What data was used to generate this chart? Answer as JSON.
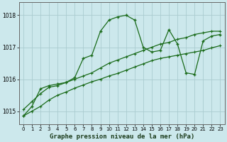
{
  "title": "Graphe pression niveau de la mer (hPa)",
  "background_color": "#cce8ec",
  "grid_color": "#aaccd0",
  "line_color": "#1a6b1a",
  "x_ticks": [
    0,
    1,
    2,
    3,
    4,
    5,
    6,
    7,
    8,
    9,
    10,
    11,
    12,
    13,
    14,
    15,
    16,
    17,
    18,
    19,
    20,
    21,
    22,
    23
  ],
  "y_ticks": [
    1015,
    1016,
    1017,
    1018
  ],
  "ylim": [
    1014.6,
    1018.4
  ],
  "xlim": [
    -0.5,
    23.5
  ],
  "series1": [
    1014.85,
    1015.15,
    1015.7,
    1015.8,
    1015.85,
    1015.9,
    1016.05,
    1016.65,
    1016.75,
    1017.5,
    1017.85,
    1017.95,
    1018.0,
    1017.85,
    1017.0,
    1016.85,
    1016.9,
    1017.55,
    1017.1,
    1016.2,
    1016.15,
    1017.2,
    1017.35,
    1017.4
  ],
  "series2": [
    1015.05,
    1015.3,
    1015.55,
    1015.75,
    1015.8,
    1015.9,
    1016.0,
    1016.1,
    1016.2,
    1016.35,
    1016.5,
    1016.6,
    1016.7,
    1016.8,
    1016.9,
    1017.0,
    1017.1,
    1017.15,
    1017.25,
    1017.3,
    1017.4,
    1017.45,
    1017.5,
    1017.5
  ],
  "series3": [
    1014.85,
    1015.0,
    1015.15,
    1015.35,
    1015.5,
    1015.6,
    1015.72,
    1015.82,
    1015.92,
    1016.0,
    1016.1,
    1016.18,
    1016.28,
    1016.38,
    1016.48,
    1016.58,
    1016.65,
    1016.7,
    1016.75,
    1016.8,
    1016.85,
    1016.9,
    1016.98,
    1017.05
  ],
  "title_fontsize": 6.5,
  "tick_fontsize": 5.5
}
